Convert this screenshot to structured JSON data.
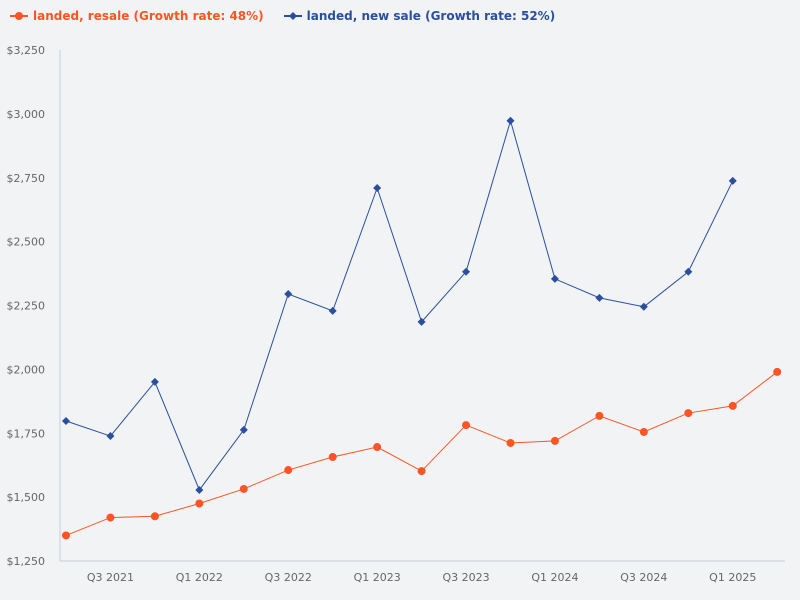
{
  "chart_data": {
    "type": "line",
    "title": "",
    "xlabel": "",
    "ylabel": "",
    "ylim": [
      1250,
      3250
    ],
    "y_ticks": [
      1250,
      1500,
      1750,
      2000,
      2250,
      2500,
      2750,
      3000,
      3250
    ],
    "y_tick_labels": [
      "$1,250",
      "$1,500",
      "$1,750",
      "$2,000",
      "$2,250",
      "$2,500",
      "$2,750",
      "$3,000",
      "$3,250"
    ],
    "categories": [
      "Q2 2021",
      "Q3 2021",
      "Q4 2021",
      "Q1 2022",
      "Q2 2022",
      "Q3 2022",
      "Q4 2022",
      "Q1 2023",
      "Q2 2023",
      "Q3 2023",
      "Q4 2023",
      "Q1 2024",
      "Q2 2024",
      "Q3 2024",
      "Q4 2024",
      "Q1 2025",
      "Q2 2025"
    ],
    "x_tick_labels": [
      "Q3 2021",
      "Q1 2022",
      "Q3 2022",
      "Q1 2023",
      "Q3 2023",
      "Q1 2024",
      "Q3 2024",
      "Q1 2025"
    ],
    "grid": false,
    "legend_position": "top-left",
    "series": [
      {
        "name": "landed, resale (Growth rate: 48%)",
        "color": "#fc5424",
        "marker": "circle",
        "values": [
          1350,
          1420,
          1425,
          1475,
          1532,
          1606,
          1657,
          1696,
          1602,
          1782,
          1712,
          1720,
          1818,
          1755,
          1829,
          1857,
          1990
        ]
      },
      {
        "name": "landed, new sale (Growth rate: 52%)",
        "color": "#2a4f9c",
        "marker": "diamond",
        "values": [
          1798,
          1739,
          1951,
          1528,
          1763,
          2295,
          2229,
          2710,
          2186,
          2382,
          2973,
          2354,
          2280,
          2245,
          2382,
          2738,
          null
        ]
      }
    ]
  }
}
